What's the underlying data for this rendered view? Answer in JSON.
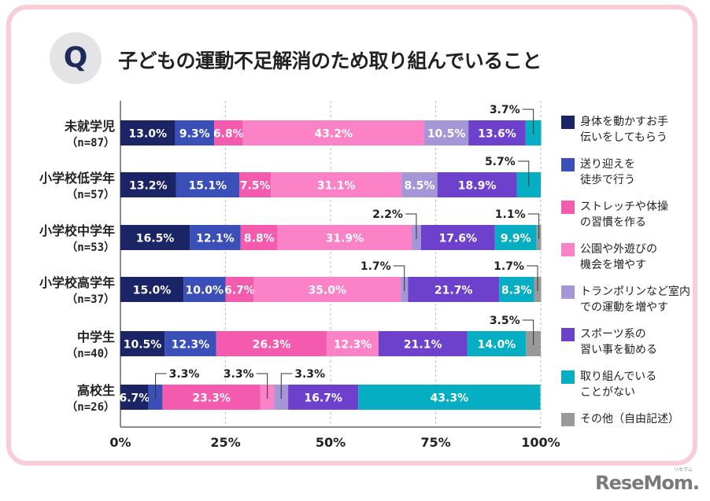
{
  "title": "子どもの運動不足解消のため取り組んでいること",
  "q_badge": "Q",
  "logo": "ReseMom.",
  "logo_ruby": "リセマム",
  "chart_data": {
    "type": "bar",
    "orientation": "horizontal",
    "stacked": true,
    "title": "子どもの運動不足解消のため取り組んでいること",
    "xlabel": "",
    "ylabel": "",
    "xlim": [
      0,
      100
    ],
    "x_ticks": [
      "0%",
      "25%",
      "50%",
      "75%",
      "100%"
    ],
    "grid": "vertical dashed",
    "legend_position": "right",
    "categories": [
      {
        "name": "未就学児",
        "n": "（n=87）"
      },
      {
        "name": "小学校低学年",
        "n": "（n=57）"
      },
      {
        "name": "小学校中学年",
        "n": "（n=53）"
      },
      {
        "name": "小学校高学年",
        "n": "（n=37）"
      },
      {
        "name": "中学生",
        "n": "（n=40）"
      },
      {
        "name": "高校生",
        "n": "（n=26）"
      }
    ],
    "series": [
      {
        "name": "身体を動かすお手\n伝いをしてもらう",
        "color": "#1b2566",
        "values": [
          13.0,
          13.2,
          16.5,
          15.0,
          10.5,
          6.7
        ]
      },
      {
        "name": "送り迎えを\n徒歩で行う",
        "color": "#3a4fb8",
        "values": [
          9.3,
          15.1,
          12.1,
          10.0,
          12.3,
          3.3
        ]
      },
      {
        "name": "ストレッチや体操\nの習慣を作る",
        "color": "#f45aad",
        "values": [
          6.8,
          7.5,
          8.8,
          6.7,
          26.3,
          23.3
        ]
      },
      {
        "name": "公園や外遊びの\n機会を増やす",
        "color": "#fb82c6",
        "values": [
          43.2,
          31.1,
          31.9,
          35.0,
          12.3,
          3.3
        ]
      },
      {
        "name": "トランポリンなど室内\nでの運動を増やす",
        "color": "#a596d8",
        "values": [
          10.5,
          8.5,
          2.2,
          1.7,
          0,
          3.3
        ]
      },
      {
        "name": "スポーツ系の\n習い事を勧める",
        "color": "#6d41cc",
        "values": [
          13.6,
          18.9,
          17.6,
          21.7,
          21.1,
          16.7
        ]
      },
      {
        "name": "取り組んでいる\nことがない",
        "color": "#05aec3",
        "values": [
          3.7,
          5.7,
          9.9,
          8.3,
          14.0,
          43.3
        ]
      },
      {
        "name": "その他（自由記述）",
        "color": "#999999",
        "values": [
          0,
          0,
          1.1,
          1.7,
          3.5,
          0
        ]
      }
    ],
    "callouts": [
      {
        "row": 0,
        "series": 6,
        "label": "3.7%",
        "side": "left"
      },
      {
        "row": 1,
        "series": 6,
        "label": "5.7%",
        "side": "left"
      },
      {
        "row": 2,
        "series": 4,
        "label": "2.2%",
        "side": "left"
      },
      {
        "row": 2,
        "series": 7,
        "label": "1.1%",
        "side": "left"
      },
      {
        "row": 3,
        "series": 4,
        "label": "1.7%",
        "side": "left"
      },
      {
        "row": 3,
        "series": 7,
        "label": "1.7%",
        "side": "left"
      },
      {
        "row": 4,
        "series": 7,
        "label": "3.5%",
        "side": "left"
      },
      {
        "row": 5,
        "series": 1,
        "label": "3.3%",
        "side": "right"
      },
      {
        "row": 5,
        "series": 3,
        "label": "3.3%",
        "side": "left"
      },
      {
        "row": 5,
        "series": 4,
        "label": "3.3%",
        "side": "right"
      }
    ]
  }
}
